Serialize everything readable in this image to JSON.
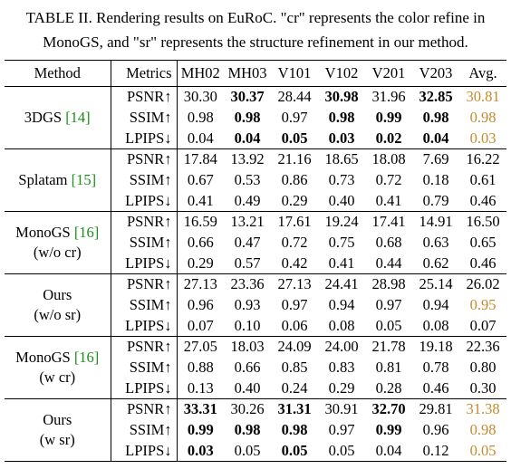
{
  "caption": "TABLE II. Rendering results on EuRoC. \"cr\" represents the color refine in MonoGS, and \"sr\" represents the structure refinement in our method.",
  "colors": {
    "citation": "#1a8f1a",
    "avg_highlight": "#c48a2c"
  },
  "headers": [
    "Method",
    "Metrics",
    "MH02",
    "MH03",
    "V101",
    "V102",
    "V201",
    "V203",
    "Avg."
  ],
  "groups": [
    {
      "method_line1": "3DGS ",
      "cite": "[14]",
      "method_line2": "",
      "method_line2_cite": "",
      "rows": [
        {
          "metric": "PSNR↑",
          "values": [
            "30.30",
            "30.37",
            "28.44",
            "30.98",
            "31.96",
            "32.85",
            "30.81"
          ],
          "bold": [
            false,
            true,
            false,
            true,
            false,
            true,
            false
          ],
          "orange": [
            false,
            false,
            false,
            false,
            false,
            false,
            true
          ]
        },
        {
          "metric": "SSIM↑",
          "values": [
            "0.98",
            "0.98",
            "0.97",
            "0.98",
            "0.99",
            "0.98",
            "0.98"
          ],
          "bold": [
            false,
            true,
            false,
            true,
            true,
            true,
            false
          ],
          "orange": [
            false,
            false,
            false,
            false,
            false,
            false,
            true
          ]
        },
        {
          "metric": "LPIPS↓",
          "values": [
            "0.04",
            "0.04",
            "0.05",
            "0.03",
            "0.02",
            "0.04",
            "0.03"
          ],
          "bold": [
            false,
            true,
            true,
            true,
            true,
            true,
            false
          ],
          "orange": [
            false,
            false,
            false,
            false,
            false,
            false,
            true
          ]
        }
      ]
    },
    {
      "method_line1": "Splatam ",
      "cite": "[15]",
      "method_line2": "",
      "method_line2_cite": "",
      "rows": [
        {
          "metric": "PSNR↑",
          "values": [
            "17.84",
            "13.92",
            "21.16",
            "18.65",
            "18.08",
            "7.69",
            "16.22"
          ],
          "bold": [
            false,
            false,
            false,
            false,
            false,
            false,
            false
          ],
          "orange": [
            false,
            false,
            false,
            false,
            false,
            false,
            false
          ]
        },
        {
          "metric": "SSIM↑",
          "values": [
            "0.67",
            "0.53",
            "0.86",
            "0.73",
            "0.72",
            "0.18",
            "0.61"
          ],
          "bold": [
            false,
            false,
            false,
            false,
            false,
            false,
            false
          ],
          "orange": [
            false,
            false,
            false,
            false,
            false,
            false,
            false
          ]
        },
        {
          "metric": "LPIPS↓",
          "values": [
            "0.41",
            "0.49",
            "0.29",
            "0.40",
            "0.41",
            "0.79",
            "0.46"
          ],
          "bold": [
            false,
            false,
            false,
            false,
            false,
            false,
            false
          ],
          "orange": [
            false,
            false,
            false,
            false,
            false,
            false,
            false
          ]
        }
      ]
    },
    {
      "method_line1": "MonoGS ",
      "cite": "[16]",
      "method_line2": "(w/o cr)",
      "method_line2_cite": "",
      "rows": [
        {
          "metric": "PSNR↑",
          "values": [
            "16.59",
            "13.21",
            "17.61",
            "19.24",
            "17.41",
            "14.91",
            "16.50"
          ],
          "bold": [
            false,
            false,
            false,
            false,
            false,
            false,
            false
          ],
          "orange": [
            false,
            false,
            false,
            false,
            false,
            false,
            false
          ]
        },
        {
          "metric": "SSIM↑",
          "values": [
            "0.66",
            "0.47",
            "0.72",
            "0.75",
            "0.68",
            "0.63",
            "0.65"
          ],
          "bold": [
            false,
            false,
            false,
            false,
            false,
            false,
            false
          ],
          "orange": [
            false,
            false,
            false,
            false,
            false,
            false,
            false
          ]
        },
        {
          "metric": "LPIPS↓",
          "values": [
            "0.29",
            "0.57",
            "0.42",
            "0.41",
            "0.44",
            "0.62",
            "0.46"
          ],
          "bold": [
            false,
            false,
            false,
            false,
            false,
            false,
            false
          ],
          "orange": [
            false,
            false,
            false,
            false,
            false,
            false,
            false
          ]
        }
      ]
    },
    {
      "method_line1": "Ours",
      "cite": "",
      "method_line2": "(w/o sr)",
      "method_line2_cite": "",
      "rows": [
        {
          "metric": "PSNR↑",
          "values": [
            "27.13",
            "23.36",
            "27.13",
            "24.41",
            "28.98",
            "25.14",
            "26.02"
          ],
          "bold": [
            false,
            false,
            false,
            false,
            false,
            false,
            false
          ],
          "orange": [
            false,
            false,
            false,
            false,
            false,
            false,
            false
          ]
        },
        {
          "metric": "SSIM↑",
          "values": [
            "0.96",
            "0.93",
            "0.97",
            "0.94",
            "0.97",
            "0.94",
            "0.95"
          ],
          "bold": [
            false,
            false,
            false,
            false,
            false,
            false,
            false
          ],
          "orange": [
            false,
            false,
            false,
            false,
            false,
            false,
            true
          ]
        },
        {
          "metric": "LPIPS↓",
          "values": [
            "0.07",
            "0.10",
            "0.06",
            "0.08",
            "0.05",
            "0.08",
            "0.07"
          ],
          "bold": [
            false,
            false,
            false,
            false,
            false,
            false,
            false
          ],
          "orange": [
            false,
            false,
            false,
            false,
            false,
            false,
            false
          ]
        }
      ]
    },
    {
      "method_line1": "MonoGS ",
      "cite": "[16]",
      "method_line2": "(w cr)",
      "method_line2_cite": "",
      "rows": [
        {
          "metric": "PSNR↑",
          "values": [
            "27.05",
            "18.03",
            "24.09",
            "24.00",
            "21.78",
            "19.18",
            "22.36"
          ],
          "bold": [
            false,
            false,
            false,
            false,
            false,
            false,
            false
          ],
          "orange": [
            false,
            false,
            false,
            false,
            false,
            false,
            false
          ]
        },
        {
          "metric": "SSIM↑",
          "values": [
            "0.88",
            "0.66",
            "0.85",
            "0.83",
            "0.81",
            "0.78",
            "0.80"
          ],
          "bold": [
            false,
            false,
            false,
            false,
            false,
            false,
            false
          ],
          "orange": [
            false,
            false,
            false,
            false,
            false,
            false,
            false
          ]
        },
        {
          "metric": "LPIPS↓",
          "values": [
            "0.13",
            "0.40",
            "0.24",
            "0.29",
            "0.28",
            "0.46",
            "0.30"
          ],
          "bold": [
            false,
            false,
            false,
            false,
            false,
            false,
            false
          ],
          "orange": [
            false,
            false,
            false,
            false,
            false,
            false,
            false
          ]
        }
      ]
    },
    {
      "method_line1": "Ours",
      "cite": "",
      "method_line2": "(w sr)",
      "method_line2_cite": "",
      "rows": [
        {
          "metric": "PSNR↑",
          "values": [
            "33.31",
            "30.26",
            "31.31",
            "30.91",
            "32.70",
            "29.81",
            "31.38"
          ],
          "bold": [
            true,
            false,
            true,
            false,
            true,
            false,
            false
          ],
          "orange": [
            false,
            false,
            false,
            false,
            false,
            false,
            true
          ]
        },
        {
          "metric": "SSIM↑",
          "values": [
            "0.99",
            "0.98",
            "0.98",
            "0.97",
            "0.99",
            "0.96",
            "0.98"
          ],
          "bold": [
            true,
            true,
            true,
            false,
            true,
            false,
            false
          ],
          "orange": [
            false,
            false,
            false,
            false,
            false,
            false,
            true
          ]
        },
        {
          "metric": "LPIPS↓",
          "values": [
            "0.03",
            "0.05",
            "0.05",
            "0.05",
            "0.04",
            "0.12",
            "0.05"
          ],
          "bold": [
            true,
            false,
            true,
            false,
            false,
            false,
            false
          ],
          "orange": [
            false,
            false,
            false,
            false,
            false,
            false,
            true
          ]
        }
      ]
    }
  ]
}
